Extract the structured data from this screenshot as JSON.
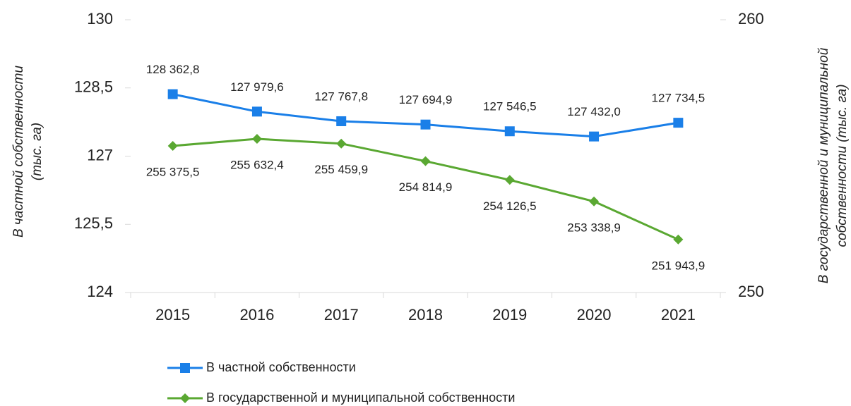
{
  "chart_data": {
    "type": "line",
    "categories": [
      "2015",
      "2016",
      "2017",
      "2018",
      "2019",
      "2020",
      "2021"
    ],
    "series": [
      {
        "name": "В частной собственности",
        "color": "#1a7fe8",
        "marker": "square",
        "axis": "y",
        "values": [
          128.3628,
          127.9796,
          127.7678,
          127.6949,
          127.5465,
          127.432,
          127.7345
        ],
        "value_labels": [
          "128 362,8",
          "127 979,6",
          "127 767,8",
          "127 694,9",
          "127 546,5",
          "127 432,0",
          "127 734,5"
        ]
      },
      {
        "name": "В государственной и муниципальной собственности",
        "color": "#5aa832",
        "marker": "diamond",
        "axis": "y2",
        "values": [
          255.3755,
          255.6324,
          255.4599,
          254.8149,
          254.1265,
          253.3389,
          251.9439
        ],
        "value_labels": [
          "255 375,5",
          "255 632,4",
          "255 459,9",
          "254 814,9",
          "254 126,5",
          "253 338,9",
          "251 943,9"
        ]
      }
    ],
    "ylim": [
      124,
      130
    ],
    "yticks": [
      124,
      {
        "value": 125.5,
        "label": "125,5"
      },
      127,
      {
        "value": 128.5,
        "label": "128,5"
      },
      130
    ],
    "y2lim": [
      250,
      260
    ],
    "y2ticks": [
      250,
      260
    ],
    "ylabel_lines": [
      "В частной собственности",
      "(тыс. га)"
    ],
    "y2label_lines": [
      "В государственной и муниципальной",
      "собственности (тыс. га)"
    ],
    "legend": "bottom"
  }
}
